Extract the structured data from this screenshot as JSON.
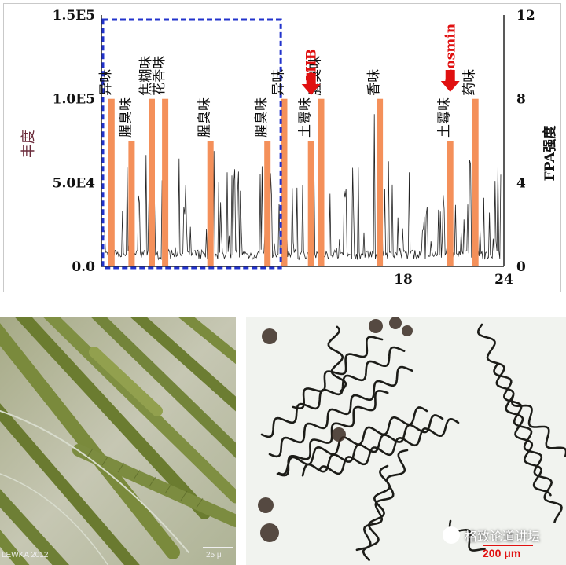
{
  "chart_data": {
    "type": "line",
    "x_ticks": [
      "18",
      "24"
    ],
    "x_range": [
      0,
      24
    ],
    "y_left": {
      "label": "丰度",
      "ticks": [
        "0.0",
        "5.0E4",
        "1.0E5",
        "1.5E5"
      ],
      "range": [
        0,
        150000
      ]
    },
    "y_right": {
      "label": "FPA强度",
      "ticks": [
        "0",
        "4",
        "8",
        "12"
      ],
      "range": [
        0,
        12
      ]
    },
    "fpa_bars": [
      {
        "x": 0.6,
        "value": 8,
        "label": "异味"
      },
      {
        "x": 1.8,
        "value": 6,
        "label": "腥臭味"
      },
      {
        "x": 3.0,
        "value": 8,
        "label": "焦糊味"
      },
      {
        "x": 3.8,
        "value": 8,
        "label": "花香味"
      },
      {
        "x": 6.5,
        "value": 6,
        "label": "腥臭味"
      },
      {
        "x": 9.9,
        "value": 6,
        "label": "腥臭味"
      },
      {
        "x": 10.9,
        "value": 8,
        "label": "异味"
      },
      {
        "x": 12.5,
        "value": 6,
        "label": "土霉味"
      },
      {
        "x": 13.1,
        "value": 8,
        "label": "腥臭味"
      },
      {
        "x": 16.6,
        "value": 8,
        "label": "香味"
      },
      {
        "x": 20.8,
        "value": 6,
        "label": "土霉味"
      },
      {
        "x": 22.3,
        "value": 8,
        "label": "药味"
      }
    ],
    "annotations": [
      {
        "text": "MIB",
        "x": 12.5
      },
      {
        "text": "Geosmin",
        "x": 20.8
      }
    ]
  },
  "photos": {
    "left": {
      "credit": "LEWKA 2012",
      "scale_label": "25 μ"
    },
    "right": {
      "scale_label": "200 μm"
    }
  },
  "watermark": {
    "text": "格致论道讲坛"
  },
  "colors": {
    "bar": "#f4905a",
    "trace": "#222222",
    "box": "#2233cc",
    "callout": "#e01010"
  }
}
